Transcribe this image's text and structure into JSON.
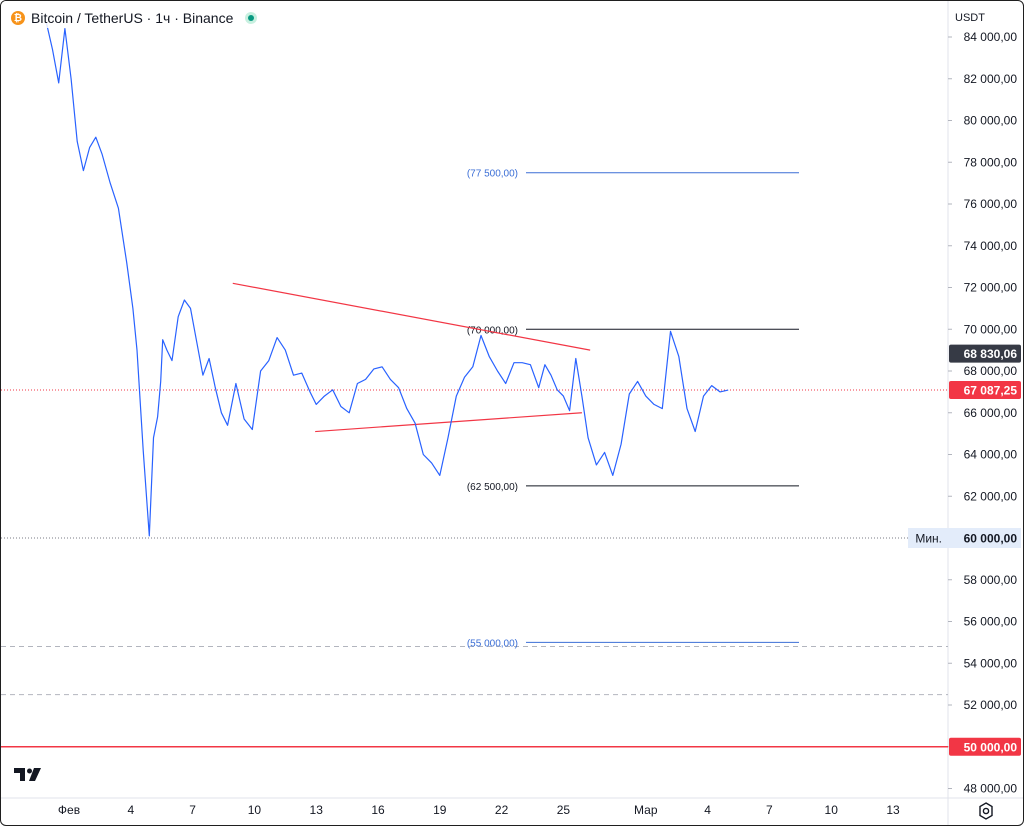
{
  "header": {
    "coin_icon_letter": "₿",
    "title": "Bitcoin / TetherUS · 1ч · Binance",
    "status_icon": "market-open-dot-icon"
  },
  "currency_button": {
    "label": "USDT"
  },
  "logo_icon": "tradingview-logo-icon",
  "settings_icon": "gear-icon",
  "colors": {
    "price_line": "#2962ff",
    "trend_lines": "#f23645",
    "level_lines": "#131722",
    "target_lines": "#3c6fd6",
    "current_price": "#f23645",
    "last_price": "#363a45",
    "min_label_bg": "#e3ecfa"
  },
  "chart_data": {
    "type": "line",
    "title": "",
    "xlabel": "",
    "ylabel": "",
    "ylim": [
      47000,
      85000
    ],
    "grid": false,
    "x_tick_labels": [
      "Фев",
      "4",
      "7",
      "10",
      "13",
      "16",
      "19",
      "22",
      "25",
      "Мар",
      "4",
      "7",
      "10",
      "13"
    ],
    "x_tick_days": [
      1,
      4,
      7,
      10,
      13,
      16,
      19,
      22,
      25,
      29,
      32,
      35,
      38,
      41
    ],
    "y_tick_values": [
      84000,
      82000,
      80000,
      78000,
      76000,
      74000,
      72000,
      70000,
      68000,
      66000,
      64000,
      62000,
      60000,
      58000,
      56000,
      54000,
      52000,
      50000,
      48000
    ],
    "y_tick_labels": [
      "84 000,00",
      "82 000,00",
      "80 000,00",
      "78 000,00",
      "76 000,00",
      "74 000,00",
      "72 000,00",
      "70 000,00",
      "68 000,00",
      "66 000,00",
      "64 000,00",
      "62 000,00",
      "60 000,00",
      "58 000,00",
      "56 000,00",
      "54 000,00",
      "52 000,00",
      "50 000,00",
      "48 000,00"
    ],
    "series": [
      {
        "x": [
          -0.1,
          0.2,
          0.5,
          0.8,
          1.1,
          1.4,
          1.7,
          2.0,
          2.3,
          2.6,
          3.0,
          3.4,
          3.8,
          4.1,
          4.3,
          4.6,
          4.9,
          5.1,
          5.3,
          5.45,
          5.55,
          5.75,
          6.0,
          6.3,
          6.6,
          6.9,
          7.2,
          7.5,
          7.8,
          8.1,
          8.4,
          8.7,
          9.1,
          9.5,
          9.9,
          10.3,
          10.7,
          11.1,
          11.5,
          11.9,
          12.3,
          12.7,
          13.0,
          13.4,
          13.8,
          14.2,
          14.6,
          15.0,
          15.4,
          15.8,
          16.2,
          16.6,
          17.0,
          17.4,
          17.8,
          18.2,
          18.6,
          19.0,
          19.4,
          19.8,
          20.2,
          20.6,
          21.0,
          21.4,
          21.8,
          22.2,
          22.6,
          23.0,
          23.4,
          23.8,
          24.1,
          24.4,
          24.7,
          25.0,
          25.3,
          25.6,
          25.9,
          26.2,
          26.6,
          27.0,
          27.4,
          27.8,
          28.2,
          28.6,
          29.0,
          29.4,
          29.8,
          30.2,
          30.6,
          31.0,
          31.4,
          31.8,
          32.2,
          32.6,
          33.0
        ],
        "y": [
          84700,
          83400,
          81800,
          84400,
          82000,
          79000,
          77600,
          78700,
          79200,
          78400,
          77000,
          75800,
          73200,
          71000,
          69000,
          64200,
          60100,
          64800,
          65800,
          67500,
          69500,
          69000,
          68500,
          70600,
          71400,
          71000,
          69400,
          67800,
          68600,
          67200,
          66000,
          65400,
          67400,
          65700,
          65200,
          68000,
          68500,
          69600,
          69000,
          67800,
          67900,
          67000,
          66400,
          66800,
          67100,
          66300,
          66000,
          67400,
          67600,
          68100,
          68200,
          67600,
          67200,
          66200,
          65500,
          64000,
          63600,
          63000,
          64800,
          66800,
          67700,
          68200,
          69700,
          68700,
          68000,
          67400,
          68400,
          68400,
          68300,
          67200,
          68300,
          67800,
          67100,
          66800,
          66100,
          68600,
          66800,
          64800,
          63500,
          64100,
          63000,
          64500,
          66900,
          67500,
          66800,
          66400,
          66200,
          69900,
          68700,
          66200,
          65100,
          66800,
          67300,
          67000,
          67087
        ]
      }
    ],
    "horizontal_levels": [
      {
        "value": 77500,
        "label": "(77 500,00)",
        "style": "target"
      },
      {
        "value": 70000,
        "label": "(70 000,00)",
        "style": "level"
      },
      {
        "value": 62500,
        "label": "(62 500,00)",
        "style": "level"
      },
      {
        "value": 55000,
        "label": "(55 000,00)",
        "style": "target"
      }
    ],
    "trend_lines": [
      {
        "from": [
          8.95,
          72200
        ],
        "to": [
          26.3,
          69000
        ]
      },
      {
        "from": [
          12.95,
          65100
        ],
        "to": [
          25.9,
          66000
        ]
      }
    ],
    "reference_lines": [
      {
        "value": 60000,
        "style": "dotted",
        "tag": "Мин."
      },
      {
        "value": 54800,
        "style": "dashed"
      },
      {
        "value": 52500,
        "style": "dashed"
      },
      {
        "value": 50000,
        "style": "solid-red",
        "axis_label": "50 000,00"
      }
    ],
    "min_label": {
      "tag": "Мин.",
      "value_label": "60 000,00"
    },
    "last_price_label": {
      "value": 68830.06,
      "text": "68 830,06"
    },
    "current_price_label": {
      "value": 67087.25,
      "text": "67 087,25"
    }
  }
}
